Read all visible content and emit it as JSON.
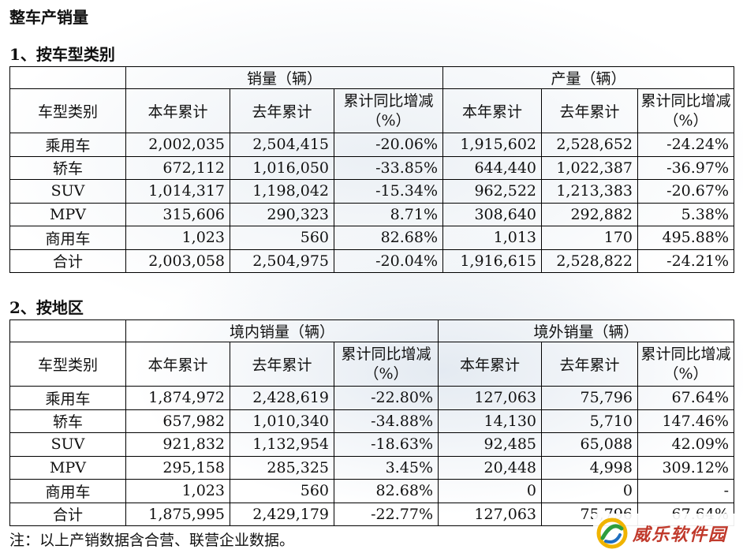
{
  "title": "整车产销量",
  "section1": {
    "heading": "1、按车型类别",
    "group_sales": "销量（辆）",
    "group_production": "产量（辆）",
    "col_category": "车型类别",
    "col_this_year": "本年累计",
    "col_last_year": "去年累计",
    "col_yoy_sales": "累计同比增减（%）",
    "col_yoy_production": "累计同比增减（%）",
    "rows": [
      {
        "category": "乘用车",
        "s_this": "2,002,035",
        "s_last": "2,504,415",
        "s_yoy": "-20.06%",
        "p_this": "1,915,602",
        "p_last": "2,528,652",
        "p_yoy": "-24.24%"
      },
      {
        "category": "轿车",
        "s_this": "672,112",
        "s_last": "1,016,050",
        "s_yoy": "-33.85%",
        "p_this": "644,440",
        "p_last": "1,022,387",
        "p_yoy": "-36.97%"
      },
      {
        "category": "SUV",
        "s_this": "1,014,317",
        "s_last": "1,198,042",
        "s_yoy": "-15.34%",
        "p_this": "962,522",
        "p_last": "1,213,383",
        "p_yoy": "-20.67%"
      },
      {
        "category": "MPV",
        "s_this": "315,606",
        "s_last": "290,323",
        "s_yoy": "8.71%",
        "p_this": "308,640",
        "p_last": "292,882",
        "p_yoy": "5.38%"
      },
      {
        "category": "商用车",
        "s_this": "1,023",
        "s_last": "560",
        "s_yoy": "82.68%",
        "p_this": "1,013",
        "p_last": "170",
        "p_yoy": "495.88%"
      },
      {
        "category": "合计",
        "s_this": "2,003,058",
        "s_last": "2,504,975",
        "s_yoy": "-20.04%",
        "p_this": "1,916,615",
        "p_last": "2,528,822",
        "p_yoy": "-24.21%"
      }
    ]
  },
  "section2": {
    "heading": "2、按地区",
    "group_domestic": "境内销量（辆）",
    "group_overseas": "境外销量（辆）",
    "col_category": "车型类别",
    "col_this_year": "本年累计",
    "col_last_year": "去年累计",
    "col_yoy": "累计同比增减（%）",
    "rows": [
      {
        "category": "乘用车",
        "d_this": "1,874,972",
        "d_last": "2,428,619",
        "d_yoy": "-22.80%",
        "o_this": "127,063",
        "o_last": "75,796",
        "o_yoy": "67.64%"
      },
      {
        "category": "轿车",
        "d_this": "657,982",
        "d_last": "1,010,340",
        "d_yoy": "-34.88%",
        "o_this": "14,130",
        "o_last": "5,710",
        "o_yoy": "147.46%"
      },
      {
        "category": "SUV",
        "d_this": "921,832",
        "d_last": "1,132,954",
        "d_yoy": "-18.63%",
        "o_this": "92,485",
        "o_last": "65,088",
        "o_yoy": "42.09%"
      },
      {
        "category": "MPV",
        "d_this": "295,158",
        "d_last": "285,325",
        "d_yoy": "3.45%",
        "o_this": "20,448",
        "o_last": "4,998",
        "o_yoy": "309.12%"
      },
      {
        "category": "商用车",
        "d_this": "1,023",
        "d_last": "560",
        "d_yoy": "82.68%",
        "o_this": "0",
        "o_last": "0",
        "o_yoy": "-"
      },
      {
        "category": "合计",
        "d_this": "1,875,995",
        "d_last": "2,429,179",
        "d_yoy": "-22.77%",
        "o_this": "127,063",
        "o_last": "75,796",
        "o_yoy": "67.64%"
      }
    ]
  },
  "footnote": "注：以上产销数据含合营、联营企业数据。",
  "watermark": {
    "text": "威乐软件园",
    "icon": "swirl-logo-icon",
    "color": "#c0392b"
  }
}
